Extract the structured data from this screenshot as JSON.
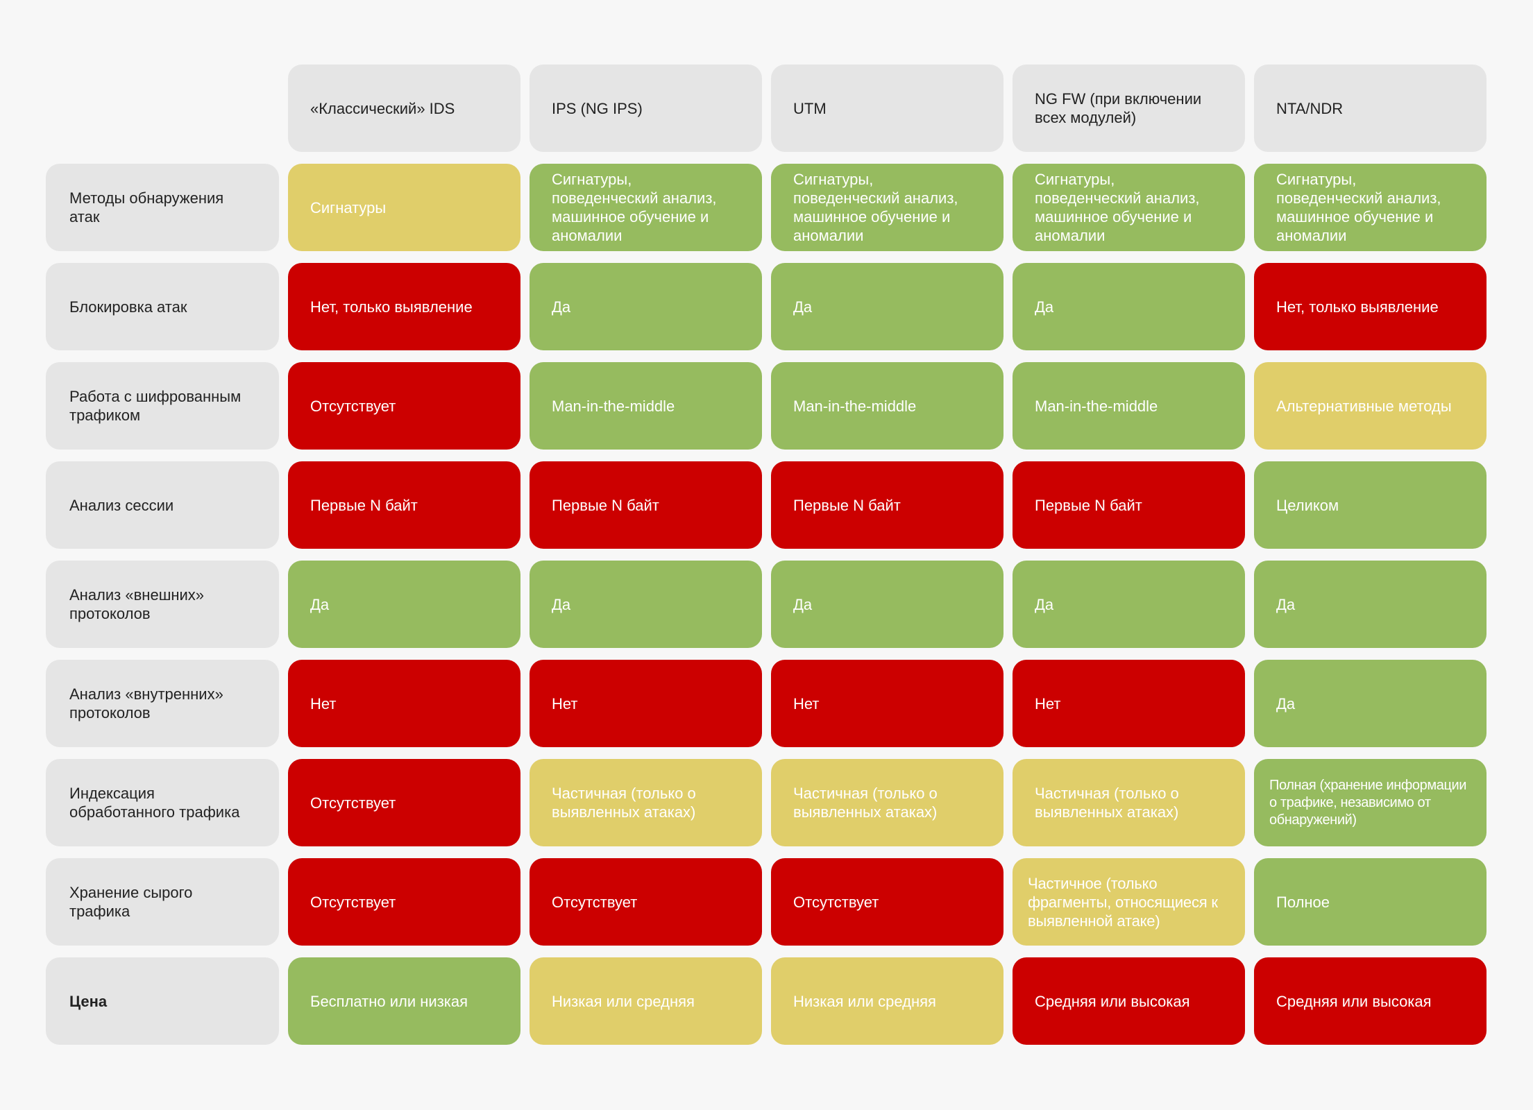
{
  "columns": [
    "«Классический» IDS",
    "IPS (NG IPS)",
    "UTM",
    "NG FW (при включении всех модулей)",
    "NTA/NDR"
  ],
  "colors": {
    "green": "#96bb5f",
    "red": "#cc0000",
    "yellow": "#e0ce6a",
    "header": "#e5e5e5"
  },
  "rows": [
    {
      "label": "Методы обнаружения атак",
      "cells": [
        {
          "text": "Сигнатуры",
          "status": "yellow"
        },
        {
          "text": "Сигнатуры, поведенческий анализ, машинное обучение и аномалии",
          "status": "green"
        },
        {
          "text": "Сигнатуры, поведенческий анализ, машинное обучение и аномалии",
          "status": "green"
        },
        {
          "text": "Сигнатуры, поведенческий анализ, машинное обучение и аномалии",
          "status": "green"
        },
        {
          "text": "Сигнатуры, поведенческий анализ, машинное обучение и аномалии",
          "status": "green"
        }
      ]
    },
    {
      "label": "Блокировка атак",
      "cells": [
        {
          "text": "Нет, только выявление",
          "status": "red"
        },
        {
          "text": "Да",
          "status": "green"
        },
        {
          "text": "Да",
          "status": "green"
        },
        {
          "text": "Да",
          "status": "green"
        },
        {
          "text": "Нет, только выявление",
          "status": "red"
        }
      ]
    },
    {
      "label": "Работа с шифрованным трафиком",
      "cells": [
        {
          "text": "Отсутствует",
          "status": "red"
        },
        {
          "text": "Man-in-the-middle",
          "status": "green"
        },
        {
          "text": "Man-in-the-middle",
          "status": "green"
        },
        {
          "text": "Man-in-the-middle",
          "status": "green"
        },
        {
          "text": "Альтернативные методы",
          "status": "yellow"
        }
      ]
    },
    {
      "label": "Анализ сессии",
      "cells": [
        {
          "text": "Первые N байт",
          "status": "red"
        },
        {
          "text": "Первые N байт",
          "status": "red"
        },
        {
          "text": "Первые N байт",
          "status": "red"
        },
        {
          "text": "Первые N байт",
          "status": "red"
        },
        {
          "text": "Целиком",
          "status": "green"
        }
      ]
    },
    {
      "label": "Анализ «внешних» протоколов",
      "cells": [
        {
          "text": "Да",
          "status": "green"
        },
        {
          "text": "Да",
          "status": "green"
        },
        {
          "text": "Да",
          "status": "green"
        },
        {
          "text": "Да",
          "status": "green"
        },
        {
          "text": "Да",
          "status": "green"
        }
      ]
    },
    {
      "label": "Анализ «внутренних» протоколов",
      "cells": [
        {
          "text": "Нет",
          "status": "red"
        },
        {
          "text": "Нет",
          "status": "red"
        },
        {
          "text": "Нет",
          "status": "red"
        },
        {
          "text": "Нет",
          "status": "red"
        },
        {
          "text": "Да",
          "status": "green"
        }
      ]
    },
    {
      "label": "Индексация обработанного трафика",
      "cells": [
        {
          "text": "Отсутствует",
          "status": "red"
        },
        {
          "text": "Частичная (только о выявленных атаках)",
          "status": "yellow"
        },
        {
          "text": "Частичная (только о выявленных атаках)",
          "status": "yellow"
        },
        {
          "text": "Частичная (только о выявленных атаках)",
          "status": "yellow"
        },
        {
          "text": "Полная (хранение информации о трафике, независимо от обнаружений)",
          "status": "green"
        }
      ]
    },
    {
      "label": "Хранение сырого трафика",
      "cells": [
        {
          "text": "Отсутствует",
          "status": "red"
        },
        {
          "text": "Отсутствует",
          "status": "red"
        },
        {
          "text": "Отсутствует",
          "status": "red"
        },
        {
          "text": "Частичное (только фрагменты, относящиеся к выявленной атаке)",
          "status": "yellow"
        },
        {
          "text": "Полное",
          "status": "green"
        }
      ]
    },
    {
      "label": "Цена",
      "bold": true,
      "cells": [
        {
          "text": "Бесплатно или низкая",
          "status": "green"
        },
        {
          "text": "Низкая или средняя",
          "status": "yellow"
        },
        {
          "text": "Низкая или средняя",
          "status": "yellow"
        },
        {
          "text": "Средняя или высокая",
          "status": "red"
        },
        {
          "text": "Средняя или высокая",
          "status": "red"
        }
      ]
    }
  ]
}
